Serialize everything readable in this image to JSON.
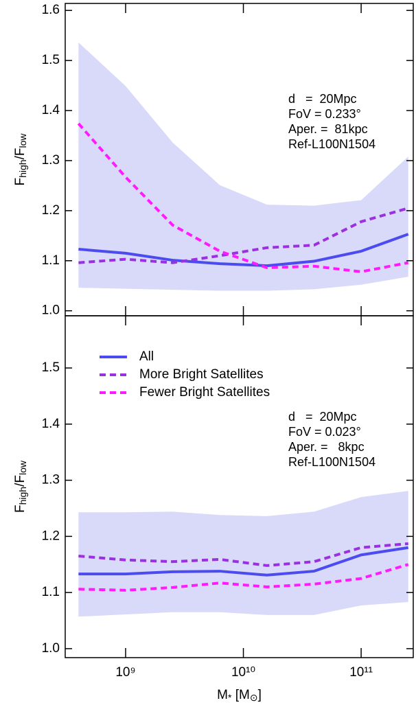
{
  "chart_data": [
    {
      "type": "line",
      "x": [
        398107170,
        1000000000,
        2511886432,
        6309573445,
        15848931925,
        39810717055,
        100000000000,
        251188643151
      ],
      "xscale": "log",
      "xlim": [
        307000000,
        277000000000
      ],
      "xticks": [
        1000000000,
        10000000000,
        100000000000
      ],
      "ylim": [
        0.99,
        1.614
      ],
      "yticks": [
        {
          "value": 1.0,
          "label": "1.0"
        },
        {
          "value": 1.1,
          "label": "1.1"
        },
        {
          "value": 1.2,
          "label": "1.2"
        },
        {
          "value": 1.3,
          "label": "1.3"
        },
        {
          "value": 1.4,
          "label": "1.4"
        },
        {
          "value": 1.5,
          "label": "1.5"
        },
        {
          "value": 1.6,
          "label": "1.6"
        }
      ],
      "ylabel": [
        "F",
        "high",
        "/F",
        "low"
      ],
      "band": {
        "color": "#d9d9f9",
        "upper": [
          1.536,
          1.449,
          1.336,
          1.251,
          1.212,
          1.21,
          1.221,
          1.308
        ],
        "lower": [
          1.046,
          1.044,
          1.042,
          1.04,
          1.04,
          1.043,
          1.052,
          1.068
        ]
      },
      "series": [
        {
          "name": "All",
          "color": "#4b4bf0",
          "dash": false,
          "values": [
            1.123,
            1.115,
            1.101,
            1.094,
            1.09,
            1.099,
            1.119,
            1.153
          ]
        },
        {
          "name": "More Bright Satellites",
          "color": "#9b30e0",
          "dash": true,
          "values": [
            1.096,
            1.103,
            1.096,
            1.11,
            1.126,
            1.131,
            1.178,
            1.205
          ]
        },
        {
          "name": "Fewer Bright Satellites",
          "color": "#ff1aff",
          "dash": true,
          "values": [
            1.374,
            1.267,
            1.171,
            1.119,
            1.086,
            1.089,
            1.078,
            1.096
          ]
        }
      ],
      "annotations": [
        "d   =  20Mpc",
        "FoV = 0.233°",
        "Aper. =  81kpc",
        "Ref-L100N1504"
      ]
    },
    {
      "type": "line",
      "x": [
        398107170,
        1000000000,
        2511886432,
        6309573445,
        15848931925,
        39810717055,
        100000000000,
        251188643151
      ],
      "xscale": "log",
      "xlim": [
        307000000,
        277000000000
      ],
      "xticks": [
        {
          "value": 1000000000,
          "label": "10⁹"
        },
        {
          "value": 10000000000,
          "label": "10¹⁰"
        },
        {
          "value": 100000000000,
          "label": "10¹¹"
        }
      ],
      "xlabel": [
        "M",
        "*",
        " [M",
        "⊙",
        "]"
      ],
      "ylim": [
        0.984,
        1.593
      ],
      "yticks": [
        {
          "value": 1.0,
          "label": "1.0"
        },
        {
          "value": 1.1,
          "label": "1.1"
        },
        {
          "value": 1.2,
          "label": "1.2"
        },
        {
          "value": 1.3,
          "label": "1.3"
        },
        {
          "value": 1.4,
          "label": "1.4"
        },
        {
          "value": 1.5,
          "label": "1.5"
        }
      ],
      "ylabel": [
        "F",
        "high",
        "/F",
        "low"
      ],
      "legend": "upper left",
      "band": {
        "color": "#d9d9f9",
        "upper": [
          1.243,
          1.243,
          1.244,
          1.238,
          1.236,
          1.244,
          1.27,
          1.281
        ],
        "lower": [
          1.057,
          1.061,
          1.065,
          1.065,
          1.06,
          1.06,
          1.077,
          1.083
        ]
      },
      "series": [
        {
          "name": "All",
          "color": "#4b4bf0",
          "dash": false,
          "values": [
            1.133,
            1.133,
            1.137,
            1.138,
            1.131,
            1.138,
            1.167,
            1.18
          ]
        },
        {
          "name": "More Bright Satellites",
          "color": "#9b30e0",
          "dash": true,
          "values": [
            1.165,
            1.158,
            1.155,
            1.159,
            1.148,
            1.155,
            1.18,
            1.187
          ]
        },
        {
          "name": "Fewer Bright Satellites",
          "color": "#ff1aff",
          "dash": true,
          "values": [
            1.106,
            1.104,
            1.109,
            1.117,
            1.11,
            1.115,
            1.125,
            1.15
          ]
        }
      ],
      "annotations": [
        "d   =  20Mpc",
        "FoV = 0.023°",
        "Aper. =   8kpc",
        "Ref-L100N1504"
      ]
    }
  ]
}
